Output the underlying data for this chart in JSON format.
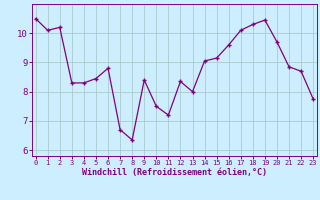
{
  "x": [
    0,
    1,
    2,
    3,
    4,
    5,
    6,
    7,
    8,
    9,
    10,
    11,
    12,
    13,
    14,
    15,
    16,
    17,
    18,
    19,
    20,
    21,
    22,
    23
  ],
  "y": [
    10.5,
    10.1,
    10.2,
    8.3,
    8.3,
    8.45,
    8.8,
    6.7,
    6.35,
    8.4,
    7.5,
    7.2,
    8.35,
    8.0,
    9.05,
    9.15,
    9.6,
    10.1,
    10.3,
    10.45,
    9.7,
    8.85,
    8.7,
    7.75
  ],
  "xlabel": "Windchill (Refroidissement éolien,°C)",
  "xtick_labels": [
    "0",
    "1",
    "2",
    "3",
    "4",
    "5",
    "6",
    "7",
    "8",
    "9",
    "10",
    "11",
    "12",
    "13",
    "14",
    "15",
    "16",
    "17",
    "18",
    "19",
    "20",
    "21",
    "22",
    "23"
  ],
  "ylim": [
    5.8,
    11.0
  ],
  "yticks": [
    6,
    7,
    8,
    9,
    10
  ],
  "xlim": [
    -0.3,
    23.3
  ],
  "line_color": "#800080",
  "marker_color": "#800080",
  "bg_color": "#cceeff",
  "grid_color": "#aacccc",
  "tick_color": "#800080",
  "label_color": "#800080",
  "figsize": [
    3.2,
    2.0
  ],
  "dpi": 100
}
